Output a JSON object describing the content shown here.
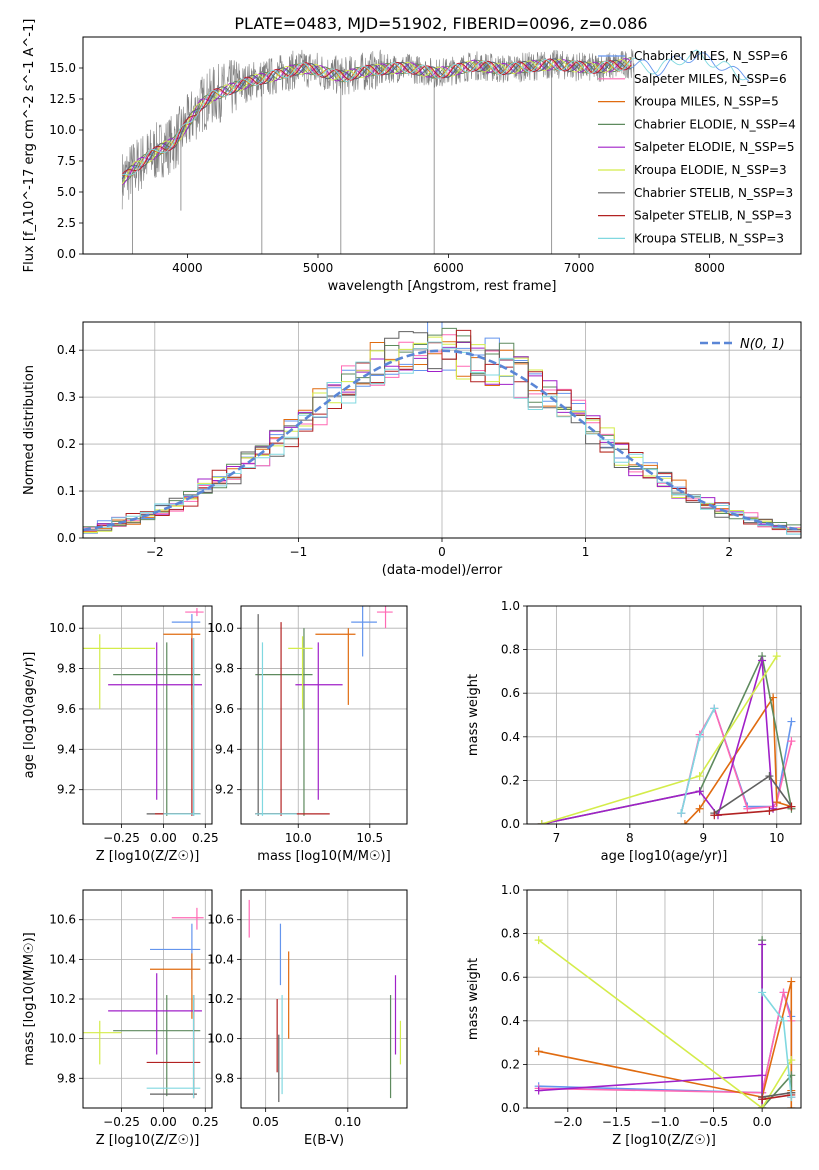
{
  "title": "PLATE=0483, MJD=51902, FIBERID=0096, z=0.086",
  "colors": {
    "chabrier_miles": "#6495ed",
    "salpeter_miles": "#ff69b4",
    "kroupa_miles": "#e06b10",
    "chabrier_elodie": "#5e8a5e",
    "salpeter_elodie": "#a020c8",
    "kroupa_elodie": "#d4ec4a",
    "chabrier_stelib": "#606060",
    "salpeter_stelib": "#b22222",
    "kroupa_stelib": "#80d8e0",
    "data": "#808080",
    "gaussian": "#5a86d6",
    "grid": "#b0b0b0"
  },
  "chart_data": [
    {
      "id": "spectrum",
      "type": "line",
      "xlabel": "wavelength [Angstrom, rest frame]",
      "ylabel": "Flux [f_λ10^-17 erg cm^-2 s^-1 A^-1]",
      "xlim": [
        3200,
        8700
      ],
      "ylim": [
        0,
        17.5
      ],
      "xticks": [
        "4000",
        "5000",
        "6000",
        "7000",
        "8000"
      ],
      "yticks": [
        "0.0",
        "2.5",
        "5.0",
        "7.5",
        "10.0",
        "12.5",
        "15.0"
      ],
      "grid": false,
      "legend_position": "right",
      "continuum": {
        "x": [
          3500,
          3600,
          3700,
          3800,
          3900,
          4000,
          4100,
          4200,
          4300,
          4400,
          4500,
          4600,
          4700,
          4800,
          4900,
          5000,
          5100,
          5200,
          5300,
          5400,
          5500,
          5600,
          5700,
          5800,
          5900,
          6000,
          6100,
          6200,
          6300,
          6400,
          6500,
          6600,
          6700,
          6800,
          6900,
          7000,
          7100,
          7200,
          7300,
          7400,
          7500,
          7600,
          7700,
          7800,
          7900,
          8000,
          8100,
          8200,
          8300
        ],
        "y": [
          6.0,
          7.0,
          7.8,
          8.5,
          9.0,
          10.5,
          12.0,
          12.8,
          13.2,
          13.6,
          14.0,
          14.2,
          14.5,
          14.8,
          15.0,
          14.8,
          14.5,
          14.3,
          14.6,
          14.8,
          14.9,
          15.0,
          15.0,
          14.8,
          14.6,
          14.7,
          15.0,
          15.2,
          15.1,
          14.9,
          15.0,
          15.1,
          15.2,
          15.3,
          15.2,
          15.1,
          15.0,
          15.1,
          15.2,
          15.4,
          15.2,
          14.8,
          15.4,
          15.8,
          16.0,
          15.6,
          15.2,
          14.6,
          14.4
        ]
      },
      "legend": [
        "Chabrier MILES, N_SSP=6",
        "Salpeter MILES, N_SSP=6",
        "Kroupa MILES, N_SSP=5",
        "Chabrier ELODIE, N_SSP=4",
        "Salpeter ELODIE, N_SSP=5",
        "Kroupa ELODIE, N_SSP=3",
        "Chabrier STELIB, N_SSP=3",
        "Salpeter STELIB, N_SSP=3",
        "Kroupa STELIB, N_SSP=3"
      ]
    },
    {
      "id": "residuals",
      "type": "line",
      "xlabel": "(data-model)/error",
      "ylabel": "Normed distribution",
      "xlim": [
        -2.5,
        2.5
      ],
      "ylim": [
        0,
        0.46
      ],
      "xticks": [
        "−2",
        "−1",
        "0",
        "1",
        "2"
      ],
      "yticks": [
        "0.0",
        "0.1",
        "0.2",
        "0.3",
        "0.4"
      ],
      "grid": true,
      "legend_position": "top-right",
      "gaussian_label": "N(0, 1)"
    },
    {
      "id": "age_vs_z",
      "type": "scatter",
      "xlabel": "Z [log10(Z/Z☉)]",
      "ylabel": "age [log10(age/yr)]",
      "xlim": [
        -0.48,
        0.29
      ],
      "ylim": [
        9.03,
        10.11
      ],
      "xticks": [
        "−0.25",
        "0.00",
        "0.25"
      ],
      "yticks": [
        "9.2",
        "9.4",
        "9.6",
        "9.8",
        "10.0"
      ],
      "grid": true,
      "points": [
        {
          "x": 0.17,
          "y": 10.03,
          "xlo": 0.05,
          "xhi": 0.22,
          "ylo": 9.98,
          "yhi": 10.07,
          "c": "chabrier_miles"
        },
        {
          "x": 0.2,
          "y": 10.08,
          "xlo": 0.13,
          "xhi": 0.24,
          "ylo": 10.06,
          "yhi": 10.1,
          "c": "salpeter_miles"
        },
        {
          "x": 0.17,
          "y": 9.97,
          "xlo": 0.0,
          "xhi": 0.22,
          "ylo": 9.62,
          "yhi": 10.0,
          "c": "kroupa_miles"
        },
        {
          "x": 0.02,
          "y": 9.77,
          "xlo": -0.3,
          "xhi": 0.22,
          "ylo": 9.07,
          "yhi": 9.93,
          "c": "chabrier_elodie"
        },
        {
          "x": -0.04,
          "y": 9.72,
          "xlo": -0.33,
          "xhi": 0.23,
          "ylo": 9.15,
          "yhi": 9.93,
          "c": "salpeter_elodie"
        },
        {
          "x": -0.38,
          "y": 9.9,
          "xlo": -0.48,
          "xhi": -0.05,
          "ylo": 9.6,
          "yhi": 9.97,
          "c": "kroupa_elodie"
        },
        {
          "x": 0.18,
          "y": 9.08,
          "xlo": -0.1,
          "xhi": 0.22,
          "ylo": 9.07,
          "yhi": 9.95,
          "c": "chabrier_stelib"
        },
        {
          "x": 0.17,
          "y": 9.08,
          "xlo": -0.05,
          "xhi": 0.22,
          "ylo": 9.07,
          "yhi": 9.95,
          "c": "salpeter_stelib"
        },
        {
          "x": 0.18,
          "y": 9.08,
          "xlo": 0.0,
          "xhi": 0.22,
          "ylo": 9.07,
          "yhi": 9.95,
          "c": "kroupa_stelib"
        }
      ]
    },
    {
      "id": "age_vs_mass",
      "type": "scatter",
      "xlabel": "mass [log10(M/M☉)]",
      "ylabel": "",
      "xlim": [
        9.6,
        10.76
      ],
      "ylim": [
        9.03,
        10.11
      ],
      "xticks": [
        "10.0",
        "10.5"
      ],
      "yticks": [
        "9.2",
        "9.4",
        "9.6",
        "9.8",
        "10.0"
      ],
      "grid": true,
      "points": [
        {
          "x": 10.45,
          "y": 10.03,
          "xlo": 10.37,
          "xhi": 10.55,
          "ylo": 9.86,
          "yhi": 10.12,
          "c": "chabrier_miles"
        },
        {
          "x": 10.61,
          "y": 10.08,
          "xlo": 10.55,
          "xhi": 10.66,
          "ylo": 10.0,
          "yhi": 10.12,
          "c": "salpeter_miles"
        },
        {
          "x": 10.35,
          "y": 9.97,
          "xlo": 10.12,
          "xhi": 10.4,
          "ylo": 9.62,
          "yhi": 10.0,
          "c": "kroupa_miles"
        },
        {
          "x": 10.04,
          "y": 9.77,
          "xlo": 9.7,
          "xhi": 10.1,
          "ylo": 9.07,
          "yhi": 10.0,
          "c": "chabrier_elodie"
        },
        {
          "x": 10.14,
          "y": 9.72,
          "xlo": 9.98,
          "xhi": 10.31,
          "ylo": 9.15,
          "yhi": 9.93,
          "c": "salpeter_elodie"
        },
        {
          "x": 10.03,
          "y": 9.9,
          "xlo": 9.93,
          "xhi": 10.1,
          "ylo": 9.6,
          "yhi": 9.96,
          "c": "kroupa_elodie"
        },
        {
          "x": 9.72,
          "y": 9.08,
          "xlo": 9.7,
          "xhi": 9.99,
          "ylo": 9.07,
          "yhi": 10.07,
          "c": "chabrier_stelib"
        },
        {
          "x": 9.88,
          "y": 9.08,
          "xlo": 9.7,
          "xhi": 10.22,
          "ylo": 9.07,
          "yhi": 10.03,
          "c": "salpeter_stelib"
        },
        {
          "x": 9.75,
          "y": 9.08,
          "xlo": 9.7,
          "xhi": 9.99,
          "ylo": 9.07,
          "yhi": 9.93,
          "c": "kroupa_stelib"
        }
      ]
    },
    {
      "id": "weight_vs_age",
      "type": "line",
      "xlabel": "age [log10(age/yr)]",
      "ylabel": "mass weight",
      "xlim": [
        6.6,
        10.33
      ],
      "ylim": [
        0,
        1.0
      ],
      "xticks": [
        "7",
        "8",
        "9",
        "10"
      ],
      "yticks": [
        "0.0",
        "0.2",
        "0.4",
        "0.6",
        "0.8",
        "1.0"
      ],
      "grid": true,
      "series": [
        {
          "c": "chabrier_miles",
          "x": [
            8.7,
            8.95,
            9.15,
            9.6,
            9.95,
            10.0,
            10.2
          ],
          "y": [
            0.05,
            0.4,
            0.53,
            0.08,
            0.08,
            0.1,
            0.47
          ]
        },
        {
          "c": "salpeter_miles",
          "x": [
            8.7,
            8.95,
            9.15,
            9.6,
            9.95,
            10.0,
            10.2
          ],
          "y": [
            0.05,
            0.41,
            0.53,
            0.07,
            0.08,
            0.1,
            0.38
          ]
        },
        {
          "c": "kroupa_miles",
          "x": [
            8.75,
            8.95,
            9.95,
            10.0,
            10.2
          ],
          "y": [
            0.0,
            0.07,
            0.58,
            0.1,
            0.08
          ]
        },
        {
          "c": "chabrier_elodie",
          "x": [
            6.8,
            8.95,
            9.8,
            10.2
          ],
          "y": [
            0.0,
            0.15,
            0.77,
            0.07
          ]
        },
        {
          "c": "salpeter_elodie",
          "x": [
            6.8,
            8.95,
            9.2,
            9.8,
            9.95
          ],
          "y": [
            0.0,
            0.15,
            0.04,
            0.75,
            0.07
          ]
        },
        {
          "c": "kroupa_elodie",
          "x": [
            6.8,
            8.95,
            10.0
          ],
          "y": [
            0.0,
            0.22,
            0.77
          ]
        },
        {
          "c": "chabrier_stelib",
          "x": [
            9.15,
            9.9,
            10.2
          ],
          "y": [
            0.05,
            0.22,
            0.08
          ]
        },
        {
          "c": "salpeter_stelib",
          "x": [
            9.15,
            9.9,
            10.2
          ],
          "y": [
            0.04,
            0.06,
            0.08
          ]
        },
        {
          "c": "kroupa_stelib",
          "x": [
            8.7,
            8.95,
            9.15
          ],
          "y": [
            0.05,
            0.4,
            0.53
          ]
        }
      ]
    },
    {
      "id": "mass_vs_z",
      "type": "scatter",
      "xlabel": "Z [log10(Z/Z☉)]",
      "ylabel": "mass [log10(M/M☉)]",
      "xlim": [
        -0.48,
        0.29
      ],
      "ylim": [
        9.65,
        10.75
      ],
      "xticks": [
        "−0.25",
        "0.00",
        "0.25"
      ],
      "yticks": [
        "9.8",
        "10.0",
        "10.2",
        "10.4",
        "10.6"
      ],
      "grid": true,
      "points": [
        {
          "x": 0.17,
          "y": 10.45,
          "xlo": -0.08,
          "xhi": 0.22,
          "ylo": 10.3,
          "yhi": 10.58,
          "c": "chabrier_miles"
        },
        {
          "x": 0.2,
          "y": 10.61,
          "xlo": 0.05,
          "xhi": 0.24,
          "ylo": 10.55,
          "yhi": 10.66,
          "c": "salpeter_miles"
        },
        {
          "x": 0.17,
          "y": 10.35,
          "xlo": -0.08,
          "xhi": 0.22,
          "ylo": 10.1,
          "yhi": 10.43,
          "c": "kroupa_miles"
        },
        {
          "x": 0.02,
          "y": 10.04,
          "xlo": -0.3,
          "xhi": 0.22,
          "ylo": 9.71,
          "yhi": 10.22,
          "c": "chabrier_elodie"
        },
        {
          "x": -0.04,
          "y": 10.14,
          "xlo": -0.33,
          "xhi": 0.23,
          "ylo": 9.92,
          "yhi": 10.33,
          "c": "salpeter_elodie"
        },
        {
          "x": -0.38,
          "y": 10.03,
          "xlo": -0.48,
          "xhi": -0.25,
          "ylo": 9.87,
          "yhi": 10.09,
          "c": "kroupa_elodie"
        },
        {
          "x": 0.18,
          "y": 9.72,
          "xlo": -0.08,
          "xhi": 0.2,
          "ylo": 9.7,
          "yhi": 10.22,
          "c": "chabrier_stelib"
        },
        {
          "x": 0.18,
          "y": 9.88,
          "xlo": -0.1,
          "xhi": 0.22,
          "ylo": 9.7,
          "yhi": 10.22,
          "c": "salpeter_stelib"
        },
        {
          "x": 0.18,
          "y": 9.75,
          "xlo": -0.1,
          "xhi": 0.22,
          "ylo": 9.7,
          "yhi": 10.22,
          "c": "kroupa_stelib"
        }
      ]
    },
    {
      "id": "mass_vs_ebv",
      "type": "scatter",
      "xlabel": "E(B-V)",
      "ylabel": "",
      "xlim": [
        0.035,
        0.136
      ],
      "ylim": [
        9.65,
        10.75
      ],
      "xticks": [
        "0.05",
        "0.10"
      ],
      "yticks": [
        "9.8",
        "10.0",
        "10.2",
        "10.4",
        "10.6"
      ],
      "grid": true,
      "points": [
        {
          "x": 0.059,
          "ylo": 10.27,
          "yhi": 10.58,
          "c": "chabrier_miles"
        },
        {
          "x": 0.04,
          "ylo": 10.51,
          "yhi": 10.7,
          "c": "salpeter_miles"
        },
        {
          "x": 0.064,
          "ylo": 10.0,
          "yhi": 10.44,
          "c": "kroupa_miles"
        },
        {
          "x": 0.126,
          "ylo": 9.7,
          "yhi": 10.22,
          "c": "chabrier_elodie"
        },
        {
          "x": 0.129,
          "ylo": 9.92,
          "yhi": 10.32,
          "c": "salpeter_elodie"
        },
        {
          "x": 0.132,
          "ylo": 9.87,
          "yhi": 10.09,
          "c": "kroupa_elodie"
        },
        {
          "x": 0.058,
          "ylo": 9.68,
          "yhi": 10.02,
          "c": "chabrier_stelib"
        },
        {
          "x": 0.057,
          "ylo": 9.83,
          "yhi": 10.2,
          "c": "salpeter_stelib"
        },
        {
          "x": 0.06,
          "ylo": 9.72,
          "yhi": 10.22,
          "c": "kroupa_stelib"
        }
      ]
    },
    {
      "id": "weight_vs_z",
      "type": "line",
      "xlabel": "Z [log10(Z/Z☉)]",
      "ylabel": "mass weight",
      "xlim": [
        -2.42,
        0.4
      ],
      "ylim": [
        0,
        1.0
      ],
      "xticks": [
        "−2.0",
        "−1.5",
        "−1.0",
        "−0.5",
        "0.0"
      ],
      "yticks": [
        "0.0",
        "0.2",
        "0.4",
        "0.6",
        "0.8",
        "1.0"
      ],
      "grid": true,
      "series": [
        {
          "c": "chabrier_miles",
          "x": [
            -2.3,
            0.0,
            0.22,
            0.3,
            0.3
          ],
          "y": [
            0.1,
            0.07,
            0.53,
            0.42,
            0.05
          ]
        },
        {
          "c": "salpeter_miles",
          "x": [
            -2.3,
            0.0,
            0.22,
            0.3,
            0.3
          ],
          "y": [
            0.09,
            0.07,
            0.53,
            0.4,
            0.05
          ]
        },
        {
          "c": "kroupa_miles",
          "x": [
            -2.3,
            0.0,
            0.3,
            0.3,
            0.3
          ],
          "y": [
            0.26,
            0.05,
            0.58,
            0.0,
            0.08
          ]
        },
        {
          "c": "chabrier_elodie",
          "x": [
            0.0,
            0.0,
            0.3,
            0.3
          ],
          "y": [
            0.77,
            0.0,
            0.15,
            0.07
          ]
        },
        {
          "c": "salpeter_elodie",
          "x": [
            -2.3,
            0.0,
            0.0,
            0.0
          ],
          "y": [
            0.08,
            0.15,
            0.75,
            0.0
          ]
        },
        {
          "c": "kroupa_elodie",
          "x": [
            -2.3,
            0.0,
            0.3
          ],
          "y": [
            0.77,
            0.0,
            0.22
          ]
        },
        {
          "c": "chabrier_stelib",
          "x": [
            0.0,
            0.3
          ],
          "y": [
            0.05,
            0.07
          ]
        },
        {
          "c": "salpeter_stelib",
          "x": [
            0.0,
            0.3
          ],
          "y": [
            0.04,
            0.06
          ]
        },
        {
          "c": "kroupa_stelib",
          "x": [
            0.0,
            0.22,
            0.3
          ],
          "y": [
            0.53,
            0.4,
            0.05
          ]
        }
      ]
    }
  ]
}
